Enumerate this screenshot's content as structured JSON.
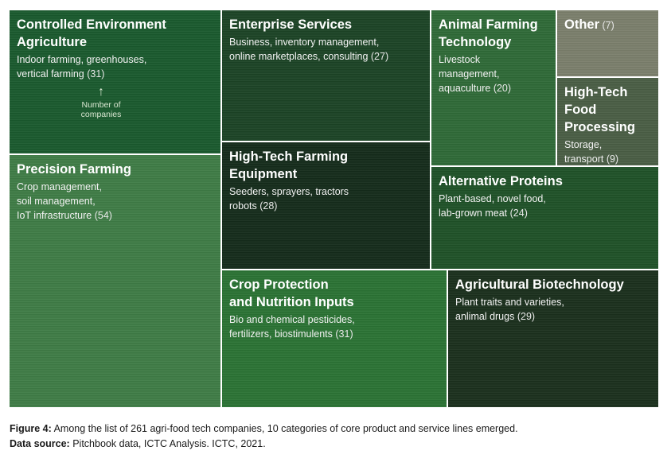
{
  "chart_data": {
    "type": "treemap",
    "unit_note": "Number of companies",
    "items": [
      {
        "name": "Controlled Environment\nAgriculture",
        "desc": "Indoor farming, greenhouses,\nvertical farming",
        "value": 31,
        "color": "#1a5a2e"
      },
      {
        "name": "Precision Farming",
        "desc": "Crop management,\nsoil management,\nIoT infrastructure",
        "value": 54,
        "color": "#3f7c46"
      },
      {
        "name": "Enterprise Services",
        "desc": "Business, inventory management,\nonline marketplaces, consulting",
        "value": 27,
        "color": "#1c4426"
      },
      {
        "name": "High-Tech Farming\nEquipment",
        "desc": "Seeders, sprayers, tractors\nrobots",
        "value": 28,
        "color": "#152c1b"
      },
      {
        "name": "Crop Protection\nand Nutrition Inputs",
        "desc": "Bio and chemical pesticides,\nfertilizers, biostimulents",
        "value": 31,
        "color": "#2b7334"
      },
      {
        "name": "Animal Farming\nTechnology",
        "desc": "Livestock\nmanagement,\naquaculture",
        "value": 20,
        "color": "#2f6a37"
      },
      {
        "name": "Other",
        "desc": "",
        "value": 7,
        "color": "#7b7f6c"
      },
      {
        "name": "High-Tech\nFood\nProcessing",
        "desc": "Storage,\ntransport",
        "value": 9,
        "color": "#4a5e45"
      },
      {
        "name": "Alternative Proteins",
        "desc": "Plant-based, novel food,\nlab-grown meat",
        "value": 24,
        "color": "#1f5228"
      },
      {
        "name": "Agricultural Biotechnology",
        "desc": "Plant traits and varieties,\nanlimal drugs",
        "value": 29,
        "color": "#1b301d"
      }
    ]
  },
  "caption": {
    "figure_label": "Figure 4:",
    "figure_text": " Among the list of 261 agri-food tech companies, 10 categories of core product and service lines emerged.",
    "source_label": "Data source:",
    "source_text": " Pitchbook data, ICTC Analysis. ICTC, 2021."
  }
}
